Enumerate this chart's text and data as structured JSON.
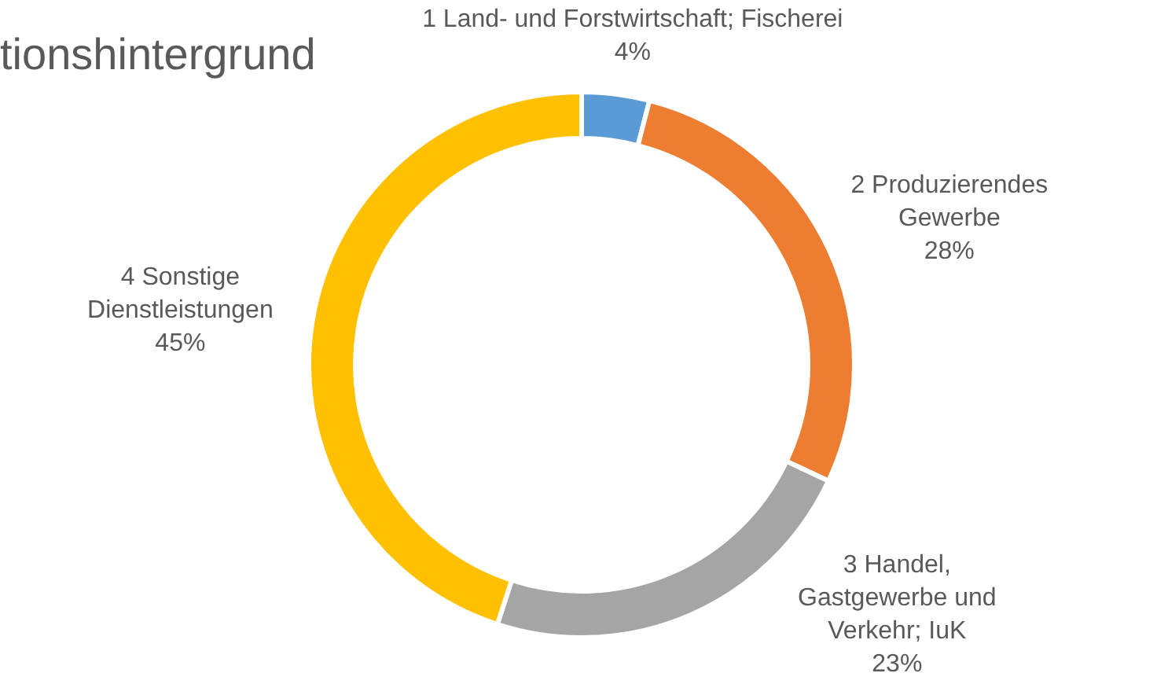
{
  "chart_data": {
    "type": "donut",
    "title": "tionshintergrund",
    "categories": [
      "1 Land- und Forstwirtschaft; Fischerei",
      "2 Produzierendes Gewerbe",
      "3 Handel, Gastgewerbe und Verkehr; IuK",
      "4 Sonstige Dienstleistungen"
    ],
    "values": [
      4,
      28,
      23,
      45
    ],
    "value_labels": [
      "4%",
      "28%",
      "23%",
      "45%"
    ],
    "colors": [
      "#5b9bd5",
      "#ed7d31",
      "#a5a5a5",
      "#ffc000"
    ]
  }
}
